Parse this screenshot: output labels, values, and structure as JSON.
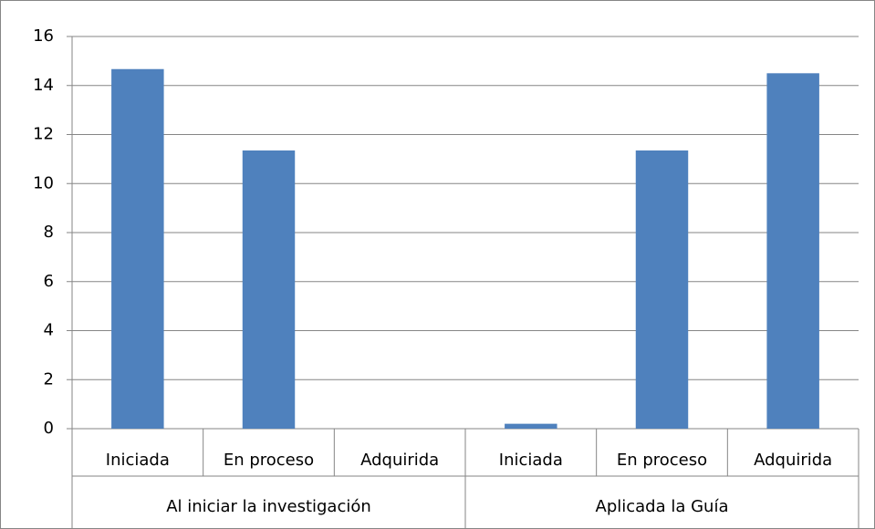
{
  "chart_data": {
    "type": "bar",
    "categories": [
      "Iniciada",
      "En proceso",
      "Adquirida",
      "Iniciada",
      "En proceso",
      "Adquirida"
    ],
    "groups": [
      "Al iniciar la investigación",
      "Aplicada la Guía"
    ],
    "values": [
      14.67,
      11.35,
      0,
      0.2,
      11.35,
      14.5
    ],
    "color": "#4f81bd",
    "ylim": [
      0,
      16
    ],
    "yticks": [
      0,
      2,
      4,
      6,
      8,
      10,
      12,
      14,
      16
    ],
    "grid": true
  }
}
